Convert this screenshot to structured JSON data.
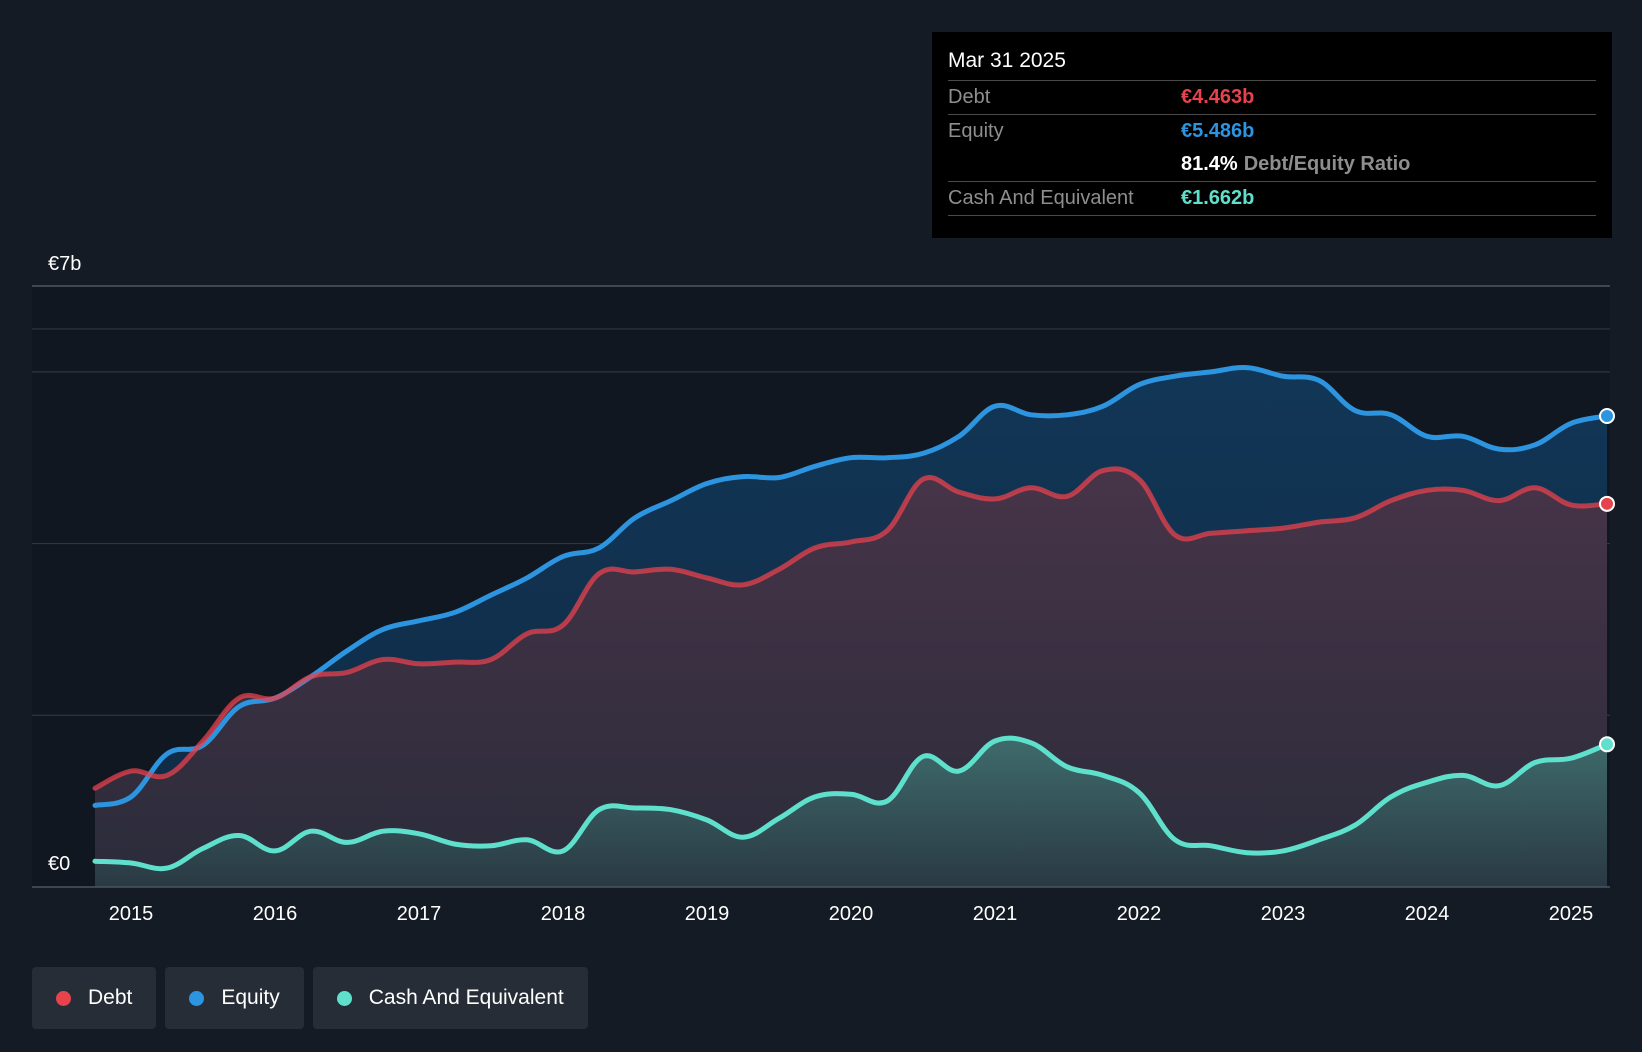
{
  "tooltip": {
    "date": "Mar 31 2025",
    "debt_label": "Debt",
    "debt_value": "€4.463b",
    "equity_label": "Equity",
    "equity_value": "€5.486b",
    "ratio_value": "81.4%",
    "ratio_label": "Debt/Equity Ratio",
    "cash_label": "Cash And Equivalent",
    "cash_value": "€1.662b"
  },
  "legend": {
    "debt": "Debt",
    "equity": "Equity",
    "cash": "Cash And Equivalent"
  },
  "colors": {
    "debt": "#e8424c",
    "equity": "#2d94e0",
    "cash": "#5fe0cc",
    "background": "#151b24",
    "plot_background": "#121820",
    "grid": "#2f3640"
  },
  "chart_data": {
    "type": "area",
    "title": "",
    "xlabel": "",
    "ylabel": "",
    "ylim": [
      0,
      7
    ],
    "xlim": [
      2014.75,
      2025.25
    ],
    "y_tick_labels": [
      "€0",
      "€7b"
    ],
    "gridlines": [
      0,
      2,
      4,
      6,
      6.5
    ],
    "x_ticks": [
      2015,
      2016,
      2017,
      2018,
      2019,
      2020,
      2021,
      2022,
      2023,
      2024,
      2025
    ],
    "x_tick_labels": [
      "2015",
      "2016",
      "2017",
      "2018",
      "2019",
      "2020",
      "2021",
      "2022",
      "2023",
      "2024",
      "2025"
    ],
    "series": [
      {
        "name": "Equity",
        "x": [
          2014.75,
          2015.0,
          2015.25,
          2015.5,
          2015.75,
          2016.0,
          2016.25,
          2016.5,
          2016.75,
          2017.0,
          2017.25,
          2017.5,
          2017.75,
          2018.0,
          2018.25,
          2018.5,
          2018.75,
          2019.0,
          2019.25,
          2019.5,
          2019.75,
          2020.0,
          2020.25,
          2020.5,
          2020.75,
          2021.0,
          2021.25,
          2021.5,
          2021.75,
          2022.0,
          2022.25,
          2022.5,
          2022.75,
          2023.0,
          2023.25,
          2023.5,
          2023.75,
          2024.0,
          2024.25,
          2024.5,
          2024.75,
          2025.0,
          2025.25
        ],
        "values": [
          0.95,
          1.05,
          1.55,
          1.65,
          2.1,
          2.2,
          2.45,
          2.75,
          3.0,
          3.1,
          3.2,
          3.4,
          3.6,
          3.85,
          3.95,
          4.3,
          4.5,
          4.7,
          4.78,
          4.77,
          4.9,
          5.0,
          5.0,
          5.05,
          5.25,
          5.6,
          5.5,
          5.5,
          5.6,
          5.85,
          5.95,
          6.0,
          6.05,
          5.95,
          5.9,
          5.55,
          5.5,
          5.25,
          5.25,
          5.1,
          5.15,
          5.4,
          5.486
        ]
      },
      {
        "name": "Debt",
        "x": [
          2014.75,
          2015.0,
          2015.25,
          2015.5,
          2015.75,
          2016.0,
          2016.25,
          2016.5,
          2016.75,
          2017.0,
          2017.25,
          2017.5,
          2017.75,
          2018.0,
          2018.25,
          2018.5,
          2018.75,
          2019.0,
          2019.25,
          2019.5,
          2019.75,
          2020.0,
          2020.25,
          2020.5,
          2020.75,
          2021.0,
          2021.25,
          2021.5,
          2021.75,
          2022.0,
          2022.25,
          2022.5,
          2022.75,
          2023.0,
          2023.25,
          2023.5,
          2023.75,
          2024.0,
          2024.25,
          2024.5,
          2024.75,
          2025.0,
          2025.25
        ],
        "values": [
          1.15,
          1.35,
          1.3,
          1.7,
          2.2,
          2.2,
          2.45,
          2.5,
          2.65,
          2.6,
          2.62,
          2.65,
          2.95,
          3.05,
          3.65,
          3.67,
          3.7,
          3.6,
          3.52,
          3.7,
          3.95,
          4.02,
          4.15,
          4.75,
          4.6,
          4.52,
          4.65,
          4.55,
          4.85,
          4.75,
          4.1,
          4.12,
          4.15,
          4.18,
          4.25,
          4.3,
          4.5,
          4.62,
          4.62,
          4.5,
          4.65,
          4.45,
          4.463
        ]
      },
      {
        "name": "Cash And Equivalent",
        "x": [
          2014.75,
          2015.0,
          2015.25,
          2015.5,
          2015.75,
          2016.0,
          2016.25,
          2016.5,
          2016.75,
          2017.0,
          2017.25,
          2017.5,
          2017.75,
          2018.0,
          2018.25,
          2018.5,
          2018.75,
          2019.0,
          2019.25,
          2019.5,
          2019.75,
          2020.0,
          2020.25,
          2020.5,
          2020.75,
          2021.0,
          2021.25,
          2021.5,
          2021.75,
          2022.0,
          2022.25,
          2022.5,
          2022.75,
          2023.0,
          2023.25,
          2023.5,
          2023.75,
          2024.0,
          2024.25,
          2024.5,
          2024.75,
          2025.0,
          2025.25
        ],
        "values": [
          0.3,
          0.28,
          0.22,
          0.45,
          0.6,
          0.42,
          0.65,
          0.52,
          0.65,
          0.62,
          0.5,
          0.48,
          0.55,
          0.42,
          0.9,
          0.92,
          0.9,
          0.78,
          0.58,
          0.8,
          1.05,
          1.08,
          1.0,
          1.52,
          1.35,
          1.7,
          1.68,
          1.4,
          1.3,
          1.1,
          0.55,
          0.48,
          0.4,
          0.42,
          0.55,
          0.72,
          1.05,
          1.22,
          1.3,
          1.18,
          1.45,
          1.5,
          1.662
        ]
      }
    ]
  }
}
